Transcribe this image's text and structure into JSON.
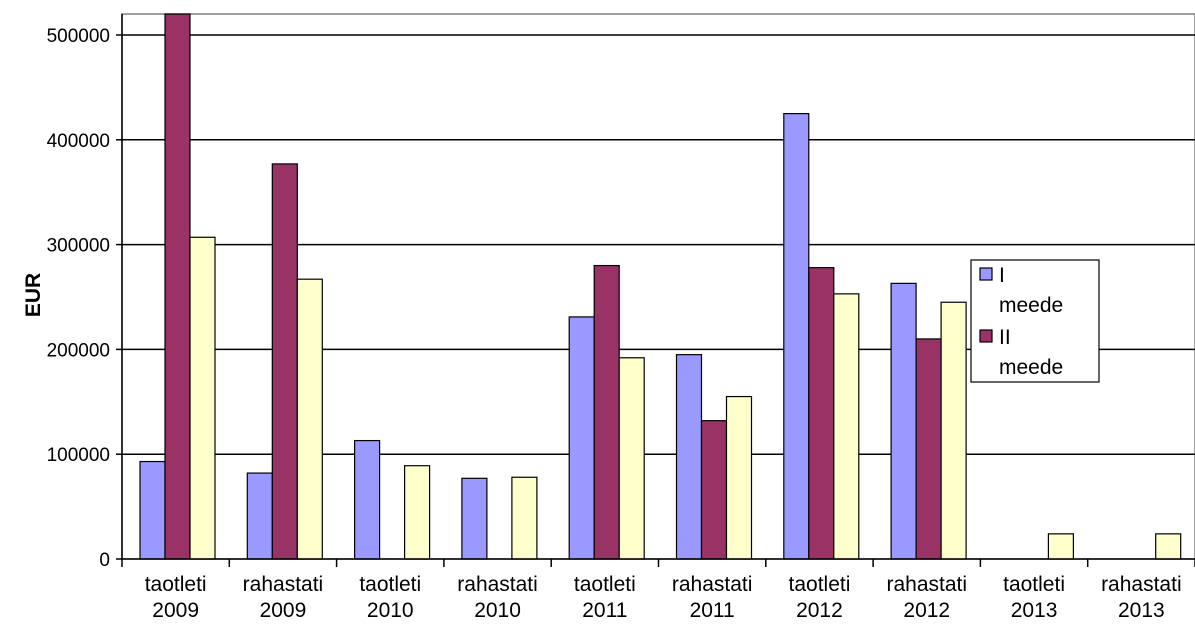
{
  "chart_data": {
    "type": "bar",
    "title": "",
    "xlabel": "",
    "ylabel": "EUR",
    "ylim": [
      0,
      500000
    ],
    "yticks": [
      0,
      100000,
      200000,
      300000,
      400000,
      500000
    ],
    "grid": true,
    "legend_position": "right",
    "categories": [
      [
        "taotleti",
        "2009"
      ],
      [
        "rahastati",
        "2009"
      ],
      [
        "taotleti",
        "2010"
      ],
      [
        "rahastati",
        "2010"
      ],
      [
        "taotleti",
        "2011"
      ],
      [
        "rahastati",
        "2011"
      ],
      [
        "taotleti",
        "2012"
      ],
      [
        "rahastati",
        "2012"
      ],
      [
        "taotleti",
        "2013"
      ],
      [
        "rahastati",
        "2013"
      ]
    ],
    "series": [
      {
        "name": "I meede",
        "legend_lines": [
          "I",
          "meede"
        ],
        "color": "#9999ff",
        "values": [
          93000,
          82000,
          113000,
          77000,
          231000,
          195000,
          425000,
          263000,
          0,
          0
        ]
      },
      {
        "name": "II meede",
        "legend_lines": [
          "II",
          "meede"
        ],
        "color": "#993366",
        "values": [
          520000,
          377000,
          0,
          0,
          280000,
          132000,
          278000,
          210000,
          0,
          0
        ]
      },
      {
        "name": "",
        "legend_lines": [],
        "color": "#ffffcc",
        "values": [
          307000,
          267000,
          89000,
          78000,
          192000,
          155000,
          253000,
          245000,
          24000,
          24000
        ]
      }
    ]
  }
}
